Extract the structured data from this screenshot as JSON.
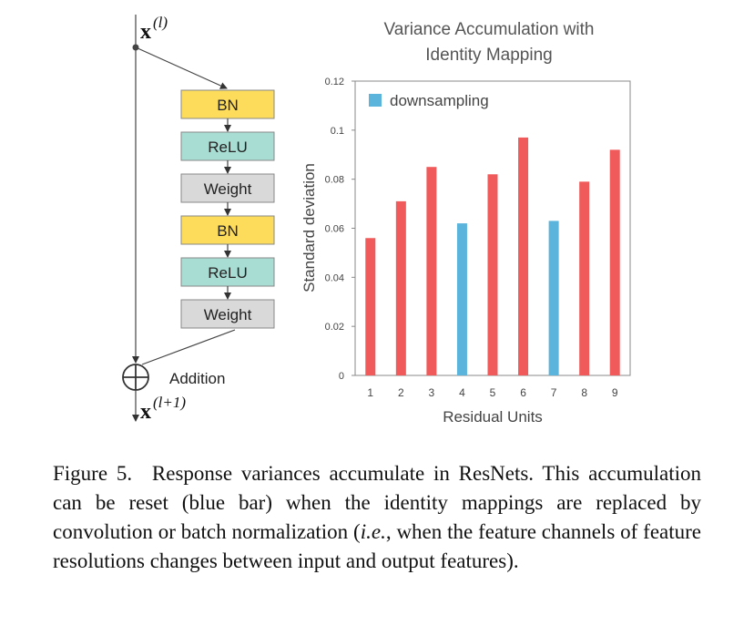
{
  "diagram": {
    "input_label_base": "x",
    "input_label_sup": "(l)",
    "output_label_base": "x",
    "output_label_sup": "(l+1)",
    "addition_label": "Addition",
    "blocks": [
      {
        "label": "BN",
        "color": "#fddc5c"
      },
      {
        "label": "ReLU",
        "color": "#a8ddd4"
      },
      {
        "label": "Weight",
        "color": "#d9d9d9"
      },
      {
        "label": "BN",
        "color": "#fddc5c"
      },
      {
        "label": "ReLU",
        "color": "#a8ddd4"
      },
      {
        "label": "Weight",
        "color": "#d9d9d9"
      }
    ]
  },
  "chart_data": {
    "type": "bar",
    "title_line1": "Variance Accumulation with",
    "title_line2": "Identity Mapping",
    "xlabel": "Residual Units",
    "ylabel": "Standard deviation",
    "categories": [
      "1",
      "2",
      "3",
      "4",
      "5",
      "6",
      "7",
      "8",
      "9"
    ],
    "values": [
      0.056,
      0.071,
      0.085,
      0.062,
      0.082,
      0.097,
      0.063,
      0.079,
      0.092
    ],
    "downsampling": [
      false,
      false,
      false,
      true,
      false,
      false,
      true,
      false,
      false
    ],
    "ylim": [
      0,
      0.12
    ],
    "yticks": [
      "0",
      "0.02",
      "0.04",
      "0.06",
      "0.08",
      "0.1",
      "0.12"
    ],
    "legend": "downsampling",
    "legend_position": "top-left",
    "colors": {
      "normal": "#f05a5b",
      "downsampling": "#5ab4dc"
    }
  },
  "caption": {
    "label": "Figure 5.",
    "text": "Response variances accumulate in ResNets. This accumulation can be reset (blue bar) when the identity mappings are replaced by convolution or batch normalization (",
    "ie": "i.e.",
    "text_end": ", when the feature channels of feature resolutions changes between input and output features)."
  }
}
